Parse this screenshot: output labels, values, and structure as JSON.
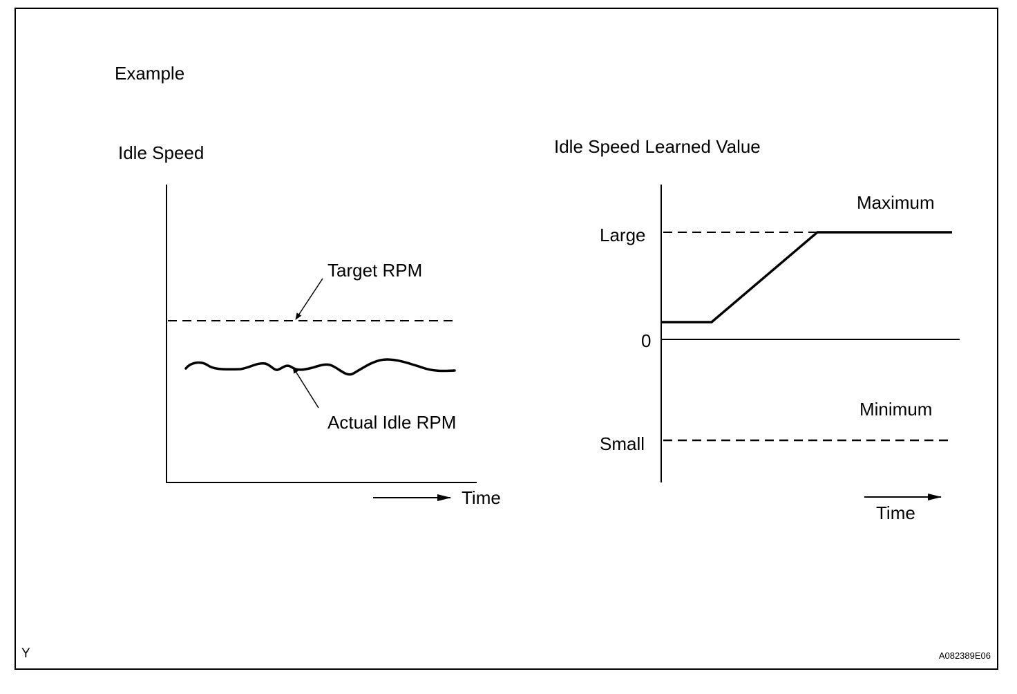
{
  "example_label": "Example",
  "left_diagram": {
    "title": "Idle Speed",
    "target_label": "Target RPM",
    "actual_label": "Actual Idle RPM",
    "time_label": "Time"
  },
  "right_diagram": {
    "title": "Idle Speed Learned Value",
    "maximum_label": "Maximum",
    "minimum_label": "Minimum",
    "large_label": "Large",
    "zero_label": "0",
    "small_label": "Small",
    "time_label": "Time"
  },
  "footer": {
    "left_code": "Y",
    "figure_id": "A082389E06"
  }
}
